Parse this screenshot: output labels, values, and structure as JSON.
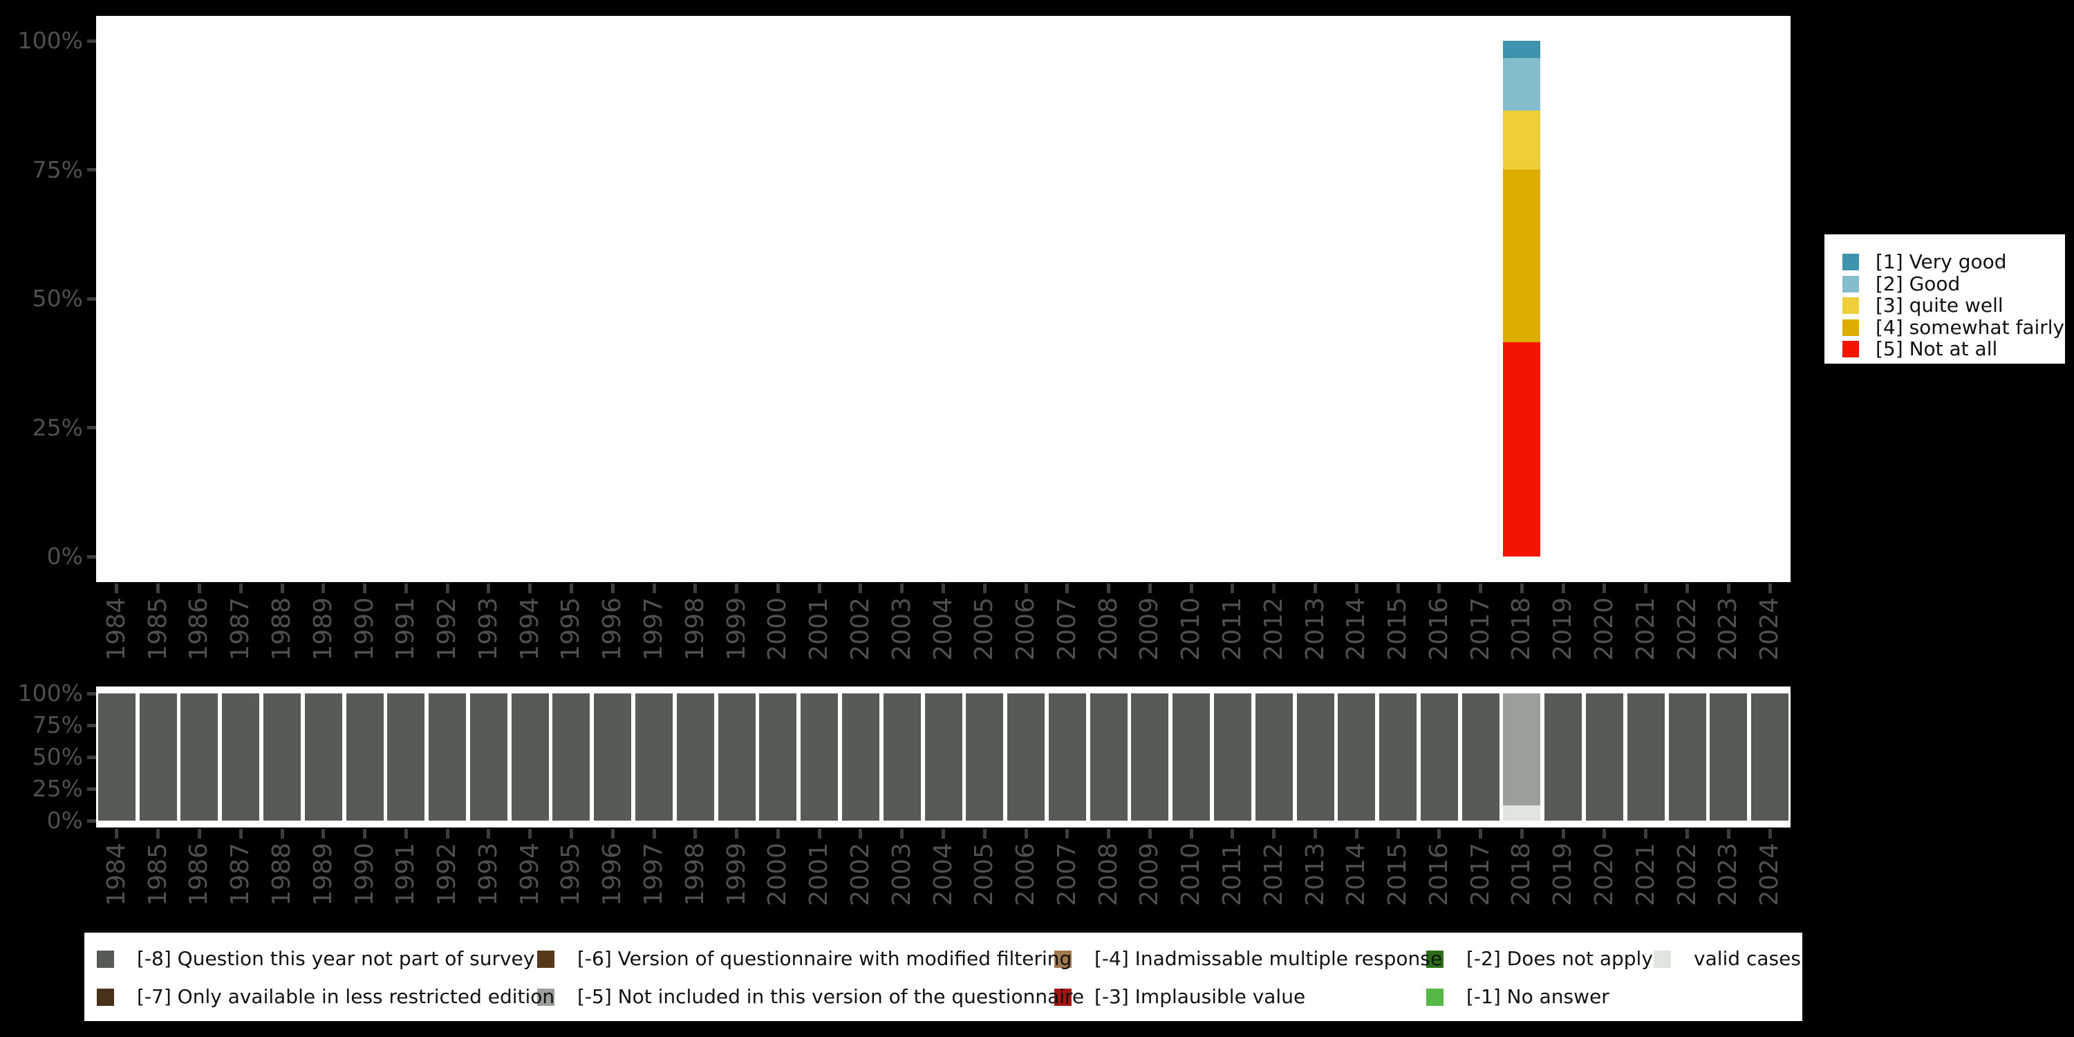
{
  "palette": {
    "background": "#000000",
    "plot_background": "#ffffff",
    "axis_tick": "#3d3d3d",
    "axis_text": "#4f4f4f",
    "legend_background": "#ffffff",
    "legend_text": "#121212"
  },
  "answers_legend": {
    "position": "right",
    "items": [
      {
        "label": "[1] Very good",
        "color": "#3e93ad"
      },
      {
        "label": "[2] Good",
        "color": "#85bdcd"
      },
      {
        "label": "[3] quite well",
        "color": "#eccf39"
      },
      {
        "label": "[4] somewhat fairly",
        "color": "#ddae00"
      },
      {
        "label": "[5] Not at all",
        "color": "#f21500"
      }
    ]
  },
  "missing_legend": {
    "position": "bottom",
    "columns": [
      {
        "items": [
          {
            "label": "[-8] Question this year not part of survey",
            "color": "#565c55"
          },
          {
            "label": "[-7] Only available in less restricted edition",
            "color": "#48311a"
          }
        ]
      },
      {
        "items": [
          {
            "label": "[-6] Version of questionnaire with modified filtering",
            "color": "#573818"
          },
          {
            "label": "[-5] Not included in this version of the questionnaire",
            "color": "#9aa099"
          }
        ]
      },
      {
        "items": [
          {
            "label": "[-4] Inadmissable multiple response",
            "color": "#a1794c"
          },
          {
            "label": "[-3] Implausible value",
            "color": "#a51512"
          }
        ]
      },
      {
        "items": [
          {
            "label": "[-2] Does not apply",
            "color": "#2a6e18"
          },
          {
            "label": "[-1] No answer",
            "color": "#56b847"
          }
        ]
      },
      {
        "items": [
          {
            "label": "valid cases",
            "color": "#e0e5df"
          }
        ]
      }
    ]
  },
  "chart_data": [
    {
      "type": "bar",
      "stacked": true,
      "title": "",
      "xlabel": "",
      "ylabel": "",
      "ylim": [
        0,
        100
      ],
      "grid": false,
      "legend_position": "right",
      "yticks": [
        {
          "label": "0%",
          "value": 0
        },
        {
          "label": "25%",
          "value": 25
        },
        {
          "label": "50%",
          "value": 50
        },
        {
          "label": "75%",
          "value": 75
        },
        {
          "label": "100%",
          "value": 100
        }
      ],
      "categories": [
        "1984",
        "1985",
        "1986",
        "1987",
        "1988",
        "1989",
        "1990",
        "1991",
        "1992",
        "1993",
        "1994",
        "1995",
        "1996",
        "1997",
        "1998",
        "1999",
        "2000",
        "2001",
        "2002",
        "2003",
        "2004",
        "2005",
        "2006",
        "2007",
        "2008",
        "2009",
        "2010",
        "2011",
        "2012",
        "2013",
        "2014",
        "2015",
        "2016",
        "2017",
        "2018",
        "2019",
        "2020",
        "2021",
        "2022",
        "2023",
        "2024"
      ],
      "series": [
        {
          "name": "[1] Very good",
          "color": "#3e93ad",
          "default": 0,
          "values_by_year": {
            "2018": 3.4
          }
        },
        {
          "name": "[2] Good",
          "color": "#85bdcd",
          "default": 0,
          "values_by_year": {
            "2018": 10.1
          }
        },
        {
          "name": "[3] quite well",
          "color": "#eccf39",
          "default": 0,
          "values_by_year": {
            "2018": 11.4
          }
        },
        {
          "name": "[4] somewhat fairly",
          "color": "#ddae00",
          "default": 0,
          "values_by_year": {
            "2018": 33.5
          }
        },
        {
          "name": "[5] Not at all",
          "color": "#f21500",
          "default": 0,
          "values_by_year": {
            "2018": 41.6
          }
        }
      ]
    },
    {
      "type": "bar",
      "stacked": true,
      "title": "",
      "xlabel": "",
      "ylabel": "",
      "ylim": [
        0,
        100
      ],
      "grid": false,
      "legend_position": "bottom",
      "yticks": [
        {
          "label": "0%",
          "value": 0
        },
        {
          "label": "25%",
          "value": 25
        },
        {
          "label": "50%",
          "value": 50
        },
        {
          "label": "75%",
          "value": 75
        },
        {
          "label": "100%",
          "value": 100
        }
      ],
      "categories": [
        "1984",
        "1985",
        "1986",
        "1987",
        "1988",
        "1989",
        "1990",
        "1991",
        "1992",
        "1993",
        "1994",
        "1995",
        "1996",
        "1997",
        "1998",
        "1999",
        "2000",
        "2001",
        "2002",
        "2003",
        "2004",
        "2005",
        "2006",
        "2007",
        "2008",
        "2009",
        "2010",
        "2011",
        "2012",
        "2013",
        "2014",
        "2015",
        "2016",
        "2017",
        "2018",
        "2019",
        "2020",
        "2021",
        "2022",
        "2023",
        "2024"
      ],
      "series": [
        {
          "name": "[-8] Question this year not part of survey",
          "color": "#565c55",
          "default": 100,
          "values_by_year": {
            "2018": 0
          }
        },
        {
          "name": "[-5] Not included in this version of the questionnaire",
          "color": "#9aa099",
          "default": 0,
          "values_by_year": {
            "2018": 88
          }
        },
        {
          "name": "valid cases",
          "color": "#e0e5df",
          "default": 0,
          "values_by_year": {
            "2018": 12
          }
        }
      ]
    }
  ]
}
